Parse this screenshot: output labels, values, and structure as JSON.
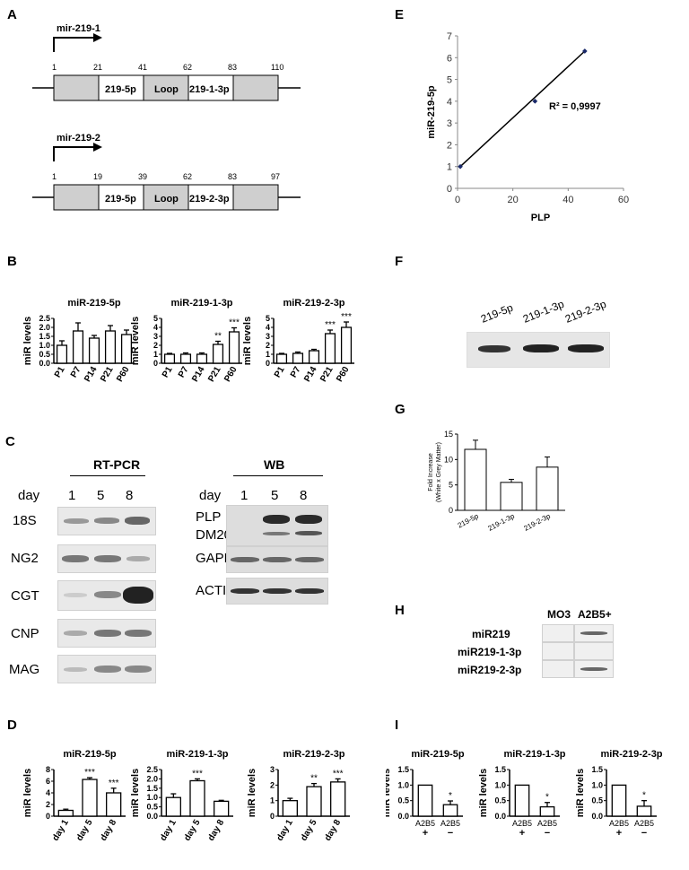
{
  "panels": {
    "A": "A",
    "B": "B",
    "C": "C",
    "D": "D",
    "E": "E",
    "F": "F",
    "G": "G",
    "H": "H",
    "I": "I"
  },
  "panelA": {
    "genes": [
      {
        "name": "mir-219-1",
        "positions": [
          "1",
          "21",
          "41",
          "62",
          "83",
          "110"
        ],
        "segments": [
          "219-5p",
          "Loop",
          "219-1-3p"
        ]
      },
      {
        "name": "mir-219-2",
        "positions": [
          "1",
          "19",
          "39",
          "62",
          "83",
          "97"
        ],
        "segments": [
          "219-5p",
          "Loop",
          "219-2-3p"
        ]
      }
    ]
  },
  "panelB": {
    "ylabel": "miR levels",
    "charts": [
      {
        "title": "miR-219-5p",
        "ticks": [
          "0.0",
          "0.5",
          "1.0",
          "1.5",
          "2.0",
          "2.5"
        ],
        "categories": [
          "P1",
          "P7",
          "P14",
          "P21",
          "P60"
        ],
        "values": [
          1.0,
          1.8,
          1.4,
          1.8,
          1.6
        ],
        "errors": [
          0.25,
          0.45,
          0.15,
          0.3,
          0.25
        ],
        "sig": [
          "",
          "",
          "",
          "",
          ""
        ]
      },
      {
        "title": "miR-219-1-3p",
        "ticks": [
          "0",
          "1",
          "2",
          "3",
          "4",
          "5"
        ],
        "categories": [
          "P1",
          "P7",
          "P14",
          "P21",
          "P60"
        ],
        "values": [
          1.0,
          1.0,
          1.0,
          2.1,
          3.5
        ],
        "errors": [
          0.1,
          0.15,
          0.15,
          0.35,
          0.45
        ],
        "sig": [
          "",
          "",
          "",
          "**",
          "***"
        ]
      },
      {
        "title": "miR-219-2-3p",
        "ticks": [
          "0",
          "1",
          "2",
          "3",
          "4",
          "5"
        ],
        "categories": [
          "P1",
          "P7",
          "P14",
          "P21",
          "P60"
        ],
        "values": [
          1.0,
          1.1,
          1.4,
          3.3,
          4.0
        ],
        "errors": [
          0.1,
          0.15,
          0.15,
          0.4,
          0.6
        ],
        "sig": [
          "",
          "",
          "",
          "***",
          "***"
        ]
      }
    ]
  },
  "panelC": {
    "rtpcr": "RT-PCR",
    "wb": "WB",
    "day": "day",
    "days": [
      "1",
      "5",
      "8"
    ],
    "rt_rows": [
      "18S",
      "NG2",
      "CGT",
      "CNP",
      "MAG"
    ],
    "wb_rows": [
      "PLP",
      "DM20",
      "GAPDH",
      "ACTIN"
    ]
  },
  "panelD": {
    "ylabel": "miR levels",
    "charts": [
      {
        "title": "miR-219-5p",
        "ticks": [
          "0",
          "2",
          "4",
          "6",
          "8"
        ],
        "categories": [
          "day 1",
          "day 5",
          "day 8"
        ],
        "values": [
          1.0,
          6.3,
          4.0
        ],
        "errors": [
          0.2,
          0.3,
          0.8
        ],
        "sig": [
          "",
          "***",
          "***"
        ]
      },
      {
        "title": "miR-219-1-3p",
        "ticks": [
          "0.0",
          "0.5",
          "1.0",
          "1.5",
          "2.0",
          "2.5"
        ],
        "categories": [
          "day 1",
          "day 5",
          "day 8"
        ],
        "values": [
          1.0,
          1.9,
          0.8
        ],
        "errors": [
          0.2,
          0.1,
          0.05
        ],
        "sig": [
          "",
          "***",
          ""
        ]
      },
      {
        "title": "miR-219-2-3p",
        "ticks": [
          "0",
          "1",
          "2",
          "3"
        ],
        "categories": [
          "day 1",
          "day 5",
          "day 8"
        ],
        "values": [
          1.0,
          1.9,
          2.2
        ],
        "errors": [
          0.15,
          0.2,
          0.2
        ],
        "sig": [
          "",
          "**",
          "***"
        ]
      }
    ]
  },
  "chart_data": [
    {
      "type": "scatter",
      "xlabel": "PLP",
      "ylabel": "miR-219-5p",
      "x": [
        1,
        28,
        46
      ],
      "y": [
        1,
        4,
        6.3
      ],
      "xlim": [
        0,
        60
      ],
      "ylim": [
        0,
        7
      ],
      "xticks": [
        "0",
        "20",
        "40",
        "60"
      ],
      "yticks": [
        "0",
        "1",
        "2",
        "3",
        "4",
        "5",
        "6",
        "7"
      ],
      "annotation": "R² = 0,9997"
    },
    {
      "type": "bar",
      "ylabel": "Fold Increase (White x Grey Matter)",
      "categories": [
        "219-5p",
        "219-1-3p",
        "219-2-3p"
      ],
      "values": [
        12,
        5.5,
        8.5
      ],
      "errors": [
        1.8,
        0.6,
        2.0
      ],
      "ylim": [
        0,
        15
      ],
      "yticks": [
        "0",
        "5",
        "10",
        "15"
      ]
    }
  ],
  "panelE": {
    "annotation": "R² = 0,9997"
  },
  "panelF": {
    "labels": [
      "219-5p",
      "219-1-3p",
      "219-2-3p"
    ]
  },
  "panelG": {
    "ylabel1": "Fold Increase",
    "ylabel2": "(White x Grey Matter)"
  },
  "panelH": {
    "cols": [
      "MO3",
      "A2B5+"
    ],
    "rows": [
      "miR219",
      "miR219-1-3p",
      "miR219-2-3p"
    ]
  },
  "panelI": {
    "ylabel": "miR levels",
    "charts": [
      {
        "title": "miR-219-5p",
        "ticks": [
          "0.0",
          "0.5",
          "1.0",
          "1.5"
        ],
        "categories": [
          "A2B5 +",
          "A2B5 −"
        ],
        "values": [
          1.0,
          0.37
        ],
        "errors": [
          0,
          0.12
        ],
        "sig": [
          "",
          "*"
        ]
      },
      {
        "title": "miR-219-1-3p",
        "ticks": [
          "0.0",
          "0.5",
          "1.0",
          "1.5"
        ],
        "categories": [
          "A2B5 +",
          "A2B5 −"
        ],
        "values": [
          1.0,
          0.3
        ],
        "errors": [
          0,
          0.14
        ],
        "sig": [
          "",
          "*"
        ]
      },
      {
        "title": "miR-219-2-3p",
        "ticks": [
          "0.0",
          "0.5",
          "1.0",
          "1.5"
        ],
        "categories": [
          "A2B5 +",
          "A2B5 −"
        ],
        "values": [
          1.0,
          0.32
        ],
        "errors": [
          0,
          0.18
        ],
        "sig": [
          "",
          "*"
        ]
      }
    ]
  }
}
